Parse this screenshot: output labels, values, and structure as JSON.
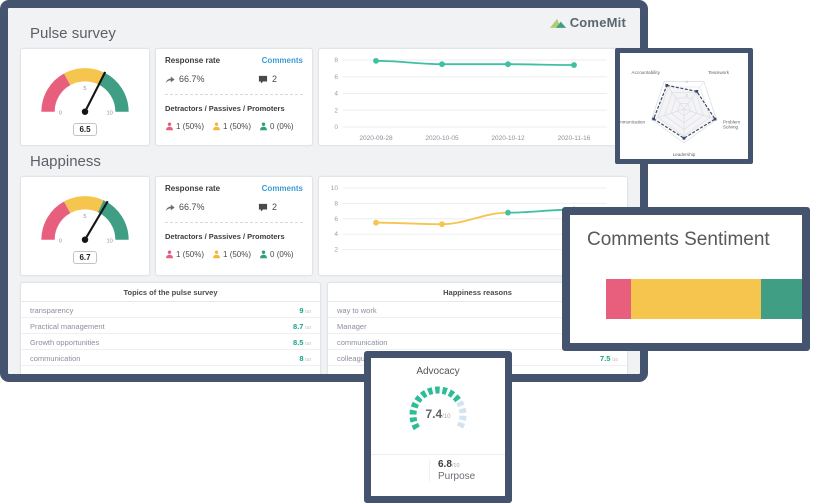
{
  "brand": {
    "logo_text": "ComeMit"
  },
  "colors": {
    "frame_navy": "#44536e",
    "pink": "#e85f7e",
    "yellow": "#f5c54e",
    "green": "#3f9e83",
    "mint_line": "#3fc0a0",
    "link_blue": "#3d9bd5",
    "value_teal": "#17a589"
  },
  "pulse_section": {
    "title": "Pulse survey",
    "gauge_value": "6.5",
    "stats": {
      "response_rate_label": "Response rate",
      "comments_label": "Comments",
      "response_rate_value": "66.7%",
      "comments_count": "2",
      "dpp_label": "Detractors / Passives / Promoters",
      "dpp": [
        {
          "name": "detractors",
          "color": "#e85f7e",
          "text": "1 (50%)"
        },
        {
          "name": "passives",
          "color": "#f0b840",
          "text": "1 (50%)"
        },
        {
          "name": "promoters",
          "color": "#2f9e7d",
          "text": "0 (0%)"
        }
      ]
    }
  },
  "happiness_section": {
    "title": "Happiness",
    "gauge_value": "6.7",
    "stats": {
      "response_rate_label": "Response rate",
      "comments_label": "Comments",
      "response_rate_value": "66.7%",
      "comments_count": "2",
      "dpp_label": "Detractors / Passives / Promoters",
      "dpp": [
        {
          "name": "detractors",
          "color": "#e85f7e",
          "text": "1 (50%)"
        },
        {
          "name": "passives",
          "color": "#f0b840",
          "text": "1 (50%)"
        },
        {
          "name": "promoters",
          "color": "#2f9e7d",
          "text": "0 (0%)"
        }
      ]
    }
  },
  "tables": [
    {
      "id": "topics",
      "header": "Topics of the pulse survey",
      "suffix": "/10",
      "rows": [
        {
          "label": "transparency",
          "value": "9"
        },
        {
          "label": "Practical management",
          "value": "8.7"
        },
        {
          "label": "Growth opportunities",
          "value": "8.5"
        },
        {
          "label": "communication",
          "value": "8"
        }
      ]
    },
    {
      "id": "reasons",
      "header": "Happiness reasons",
      "suffix": "/10",
      "rows": [
        {
          "label": "way to work",
          "value": ""
        },
        {
          "label": "Manager",
          "value": ""
        },
        {
          "label": "communication",
          "value": ""
        },
        {
          "label": "colleagues",
          "value": "7.5"
        }
      ]
    }
  ],
  "sentiment_panel": {
    "title": "Comments Sentiment"
  },
  "advocacy_panel": {
    "title": "Advocacy",
    "value": "7.4",
    "suffix": "/10",
    "secondary_value": "6.8",
    "secondary_suffix": "/10",
    "secondary_label": "Purpose"
  },
  "chart_data": [
    {
      "id": "pulse-trend",
      "type": "line",
      "x": [
        "2020-09-28",
        "2020-10-05",
        "2020-10-12",
        "2020-11-16"
      ],
      "series": [
        {
          "name": "pulse score",
          "values": [
            7.9,
            7.5,
            7.5,
            7.4
          ],
          "color": "#3fc0a0"
        }
      ],
      "ylim": [
        0,
        8
      ],
      "yticks": [
        0,
        2,
        4,
        6,
        8
      ],
      "show_x_labels": true
    },
    {
      "id": "happiness-trend",
      "type": "line",
      "x": [
        "2020-09-28",
        "2020-10-05",
        "2020-10-12",
        "2020-11-16"
      ],
      "series": [
        {
          "name": "happiness score",
          "values": [
            5.5,
            5.3,
            6.8,
            7.2
          ],
          "color": "#3fc0a0",
          "point_colors": [
            "#f5c54e",
            "#f5c54e",
            "#3fc0a0",
            "#3fc0a0"
          ],
          "segment_colors": [
            "#f5c54e",
            "#f5c54e",
            "#3fc0a0"
          ]
        }
      ],
      "ylim": [
        0,
        10
      ],
      "yticks": [
        2,
        4,
        6,
        8,
        10
      ],
      "show_x_labels": false
    },
    {
      "id": "pulse-gauge",
      "type": "gauge",
      "value": 6.5,
      "min": 0,
      "max": 10,
      "ticks": [
        0,
        5,
        10
      ],
      "bands": [
        {
          "to": 3.4,
          "color": "#e85f7e"
        },
        {
          "to": 6.4,
          "color": "#f5c54e"
        },
        {
          "to": 10,
          "color": "#3f9e83"
        }
      ]
    },
    {
      "id": "happiness-gauge",
      "type": "gauge",
      "value": 6.7,
      "min": 0,
      "max": 10,
      "ticks": [
        0,
        5,
        10
      ],
      "bands": [
        {
          "to": 3.4,
          "color": "#e85f7e"
        },
        {
          "to": 6.4,
          "color": "#f5c54e"
        },
        {
          "to": 10,
          "color": "#3f9e83"
        }
      ]
    },
    {
      "id": "skills-radar",
      "type": "radar",
      "categories": [
        "Accountability",
        "Teamwork",
        "Problem Solving",
        "Leadership",
        "Communication"
      ],
      "values": [
        4.3,
        3.2,
        4.8,
        4.3,
        4.7
      ],
      "scale_max": 5,
      "ticks": [
        2,
        4
      ],
      "color": "#3a4a65"
    },
    {
      "id": "sentiment-bar",
      "type": "stacked_bar",
      "segments": [
        {
          "name": "negative",
          "pct": 13,
          "color": "#e85f7e"
        },
        {
          "name": "neutral",
          "pct": 66,
          "color": "#f5c54e"
        },
        {
          "name": "positive",
          "pct": 21,
          "color": "#3f9e83"
        }
      ]
    },
    {
      "id": "advocacy-gauge",
      "type": "segmented_gauge",
      "value": 7.4,
      "max": 10,
      "color": "#2dbd96",
      "remainder_color": "#d4e3f1"
    }
  ]
}
